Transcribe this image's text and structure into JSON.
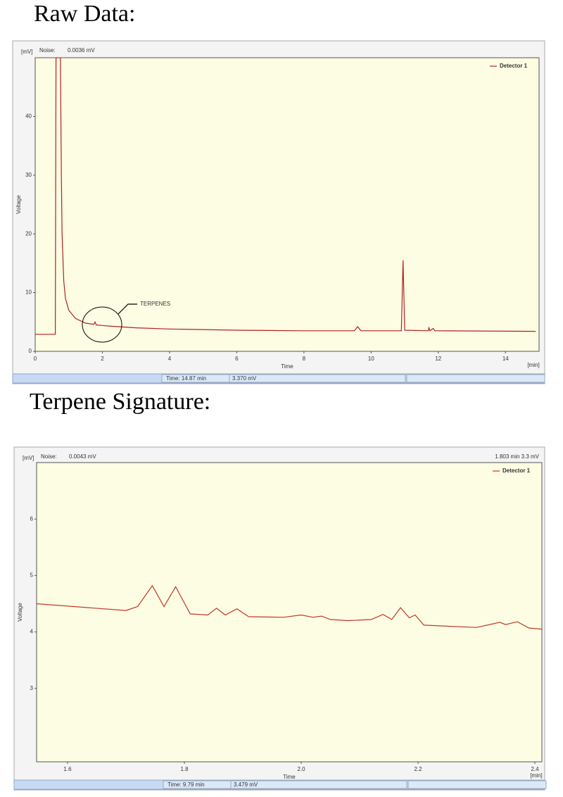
{
  "chart_data": [
    {
      "type": "line",
      "title": "Raw Data:",
      "unit_label": "[mV]",
      "noise_label": "Noise:",
      "noise_value": "0.0036 mV",
      "y_label": "Voltage",
      "x_label": "Time",
      "x_unit": "[min]",
      "annotation": "TERPENES",
      "status_time": "Time: 14.87 min",
      "status_value": "3.370 mV",
      "xlim": [
        0,
        15
      ],
      "xticks": [
        0,
        2,
        4,
        6,
        8,
        10,
        12,
        14
      ],
      "ylim": [
        0,
        50
      ],
      "yticks": [
        0,
        10,
        20,
        30,
        40
      ],
      "series": [
        {
          "name": "Detector 1",
          "color": "#b22222",
          "x": [
            0,
            0.6,
            0.62,
            0.75,
            0.78,
            0.8,
            0.85,
            0.9,
            1.0,
            1.2,
            1.5,
            1.75,
            1.78,
            1.82,
            2.0,
            2.2,
            3,
            4,
            6,
            8,
            9.5,
            9.6,
            9.7,
            10.9,
            10.95,
            11.0,
            11.7,
            11.72,
            11.75,
            11.85,
            11.9,
            14.9
          ],
          "values": [
            2.9,
            2.9,
            50,
            50,
            30,
            20,
            12,
            9,
            7,
            5.6,
            4.8,
            4.6,
            5.0,
            4.5,
            4.4,
            4.3,
            4.0,
            3.8,
            3.6,
            3.5,
            3.5,
            4.2,
            3.5,
            3.5,
            15.5,
            3.6,
            3.5,
            4.0,
            3.5,
            3.9,
            3.5,
            3.4
          ]
        }
      ]
    },
    {
      "type": "line",
      "title": "Terpene Signature:",
      "unit_label": "[mV]",
      "noise_label": "Noise:",
      "noise_value": "0.0043 mV",
      "cursor_readout": "1.803 min  3.3 mV",
      "y_label": "Voltage",
      "x_label": "Time",
      "x_unit": "[min]",
      "status_time": "Time: 9.79 min",
      "status_value": "3.479 mV",
      "xlim": [
        1.547,
        2.412
      ],
      "xticks": [
        1.6,
        1.8,
        {
          "value": 2,
          "label": "2.0"
        },
        2.2,
        2.4
      ],
      "ylim": [
        1.7,
        7
      ],
      "yticks": [
        3,
        4,
        5,
        6
      ],
      "series": [
        {
          "name": "Detector 1",
          "color": "#c0392b",
          "x": [
            1.547,
            1.7,
            1.72,
            1.745,
            1.765,
            1.785,
            1.81,
            1.84,
            1.855,
            1.87,
            1.89,
            1.91,
            1.97,
            2.0,
            2.02,
            2.035,
            2.05,
            2.08,
            2.12,
            2.14,
            2.155,
            2.17,
            2.185,
            2.195,
            2.21,
            2.3,
            2.34,
            2.35,
            2.37,
            2.39,
            2.412
          ],
          "values": [
            4.5,
            4.38,
            4.45,
            4.82,
            4.45,
            4.8,
            4.32,
            4.3,
            4.42,
            4.3,
            4.41,
            4.27,
            4.26,
            4.3,
            4.26,
            4.28,
            4.22,
            4.2,
            4.22,
            4.31,
            4.22,
            4.43,
            4.25,
            4.3,
            4.12,
            4.08,
            4.17,
            4.13,
            4.18,
            4.07,
            4.05
          ]
        }
      ]
    }
  ]
}
